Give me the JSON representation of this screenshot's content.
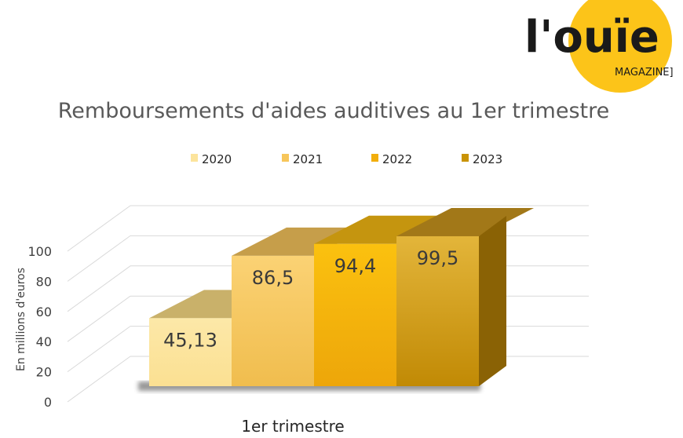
{
  "logo": {
    "brand": "l'ouïe",
    "sub": "MAGAZINE]"
  },
  "chart_data": {
    "type": "bar",
    "title": "Remboursements d'aides auditives au 1er trimestre",
    "ylabel": "En millions d'euros",
    "xlabel": "",
    "categories": [
      "1er trimestre"
    ],
    "series": [
      {
        "name": "2020",
        "values": [
          45.13
        ],
        "label": "45,13",
        "color": "#FCE49C"
      },
      {
        "name": "2021",
        "values": [
          86.5
        ],
        "label": "86,5",
        "color": "#F7C65A"
      },
      {
        "name": "2022",
        "values": [
          94.4
        ],
        "label": "94,4",
        "color": "#F2AE0C"
      },
      {
        "name": "2023",
        "values": [
          99.5
        ],
        "label": "99,5",
        "color": "#C99305"
      }
    ],
    "yticks": [
      "0",
      "20",
      "40",
      "60",
      "80",
      "100"
    ],
    "ylim": [
      0,
      100
    ],
    "legend": "top",
    "grid": true
  }
}
